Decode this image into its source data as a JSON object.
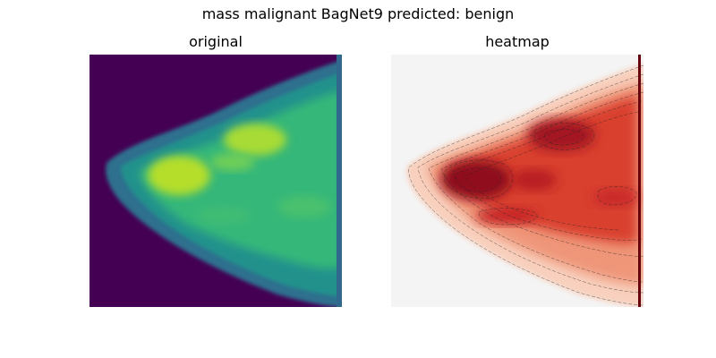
{
  "figure": {
    "suptitle": "mass malignant BagNet9 predicted: benign"
  },
  "panels": [
    {
      "title": "original",
      "colormap": "viridis",
      "background": "#440154"
    },
    {
      "title": "heatmap",
      "colormap": "Reds",
      "background": "#f4f4f4"
    }
  ]
}
